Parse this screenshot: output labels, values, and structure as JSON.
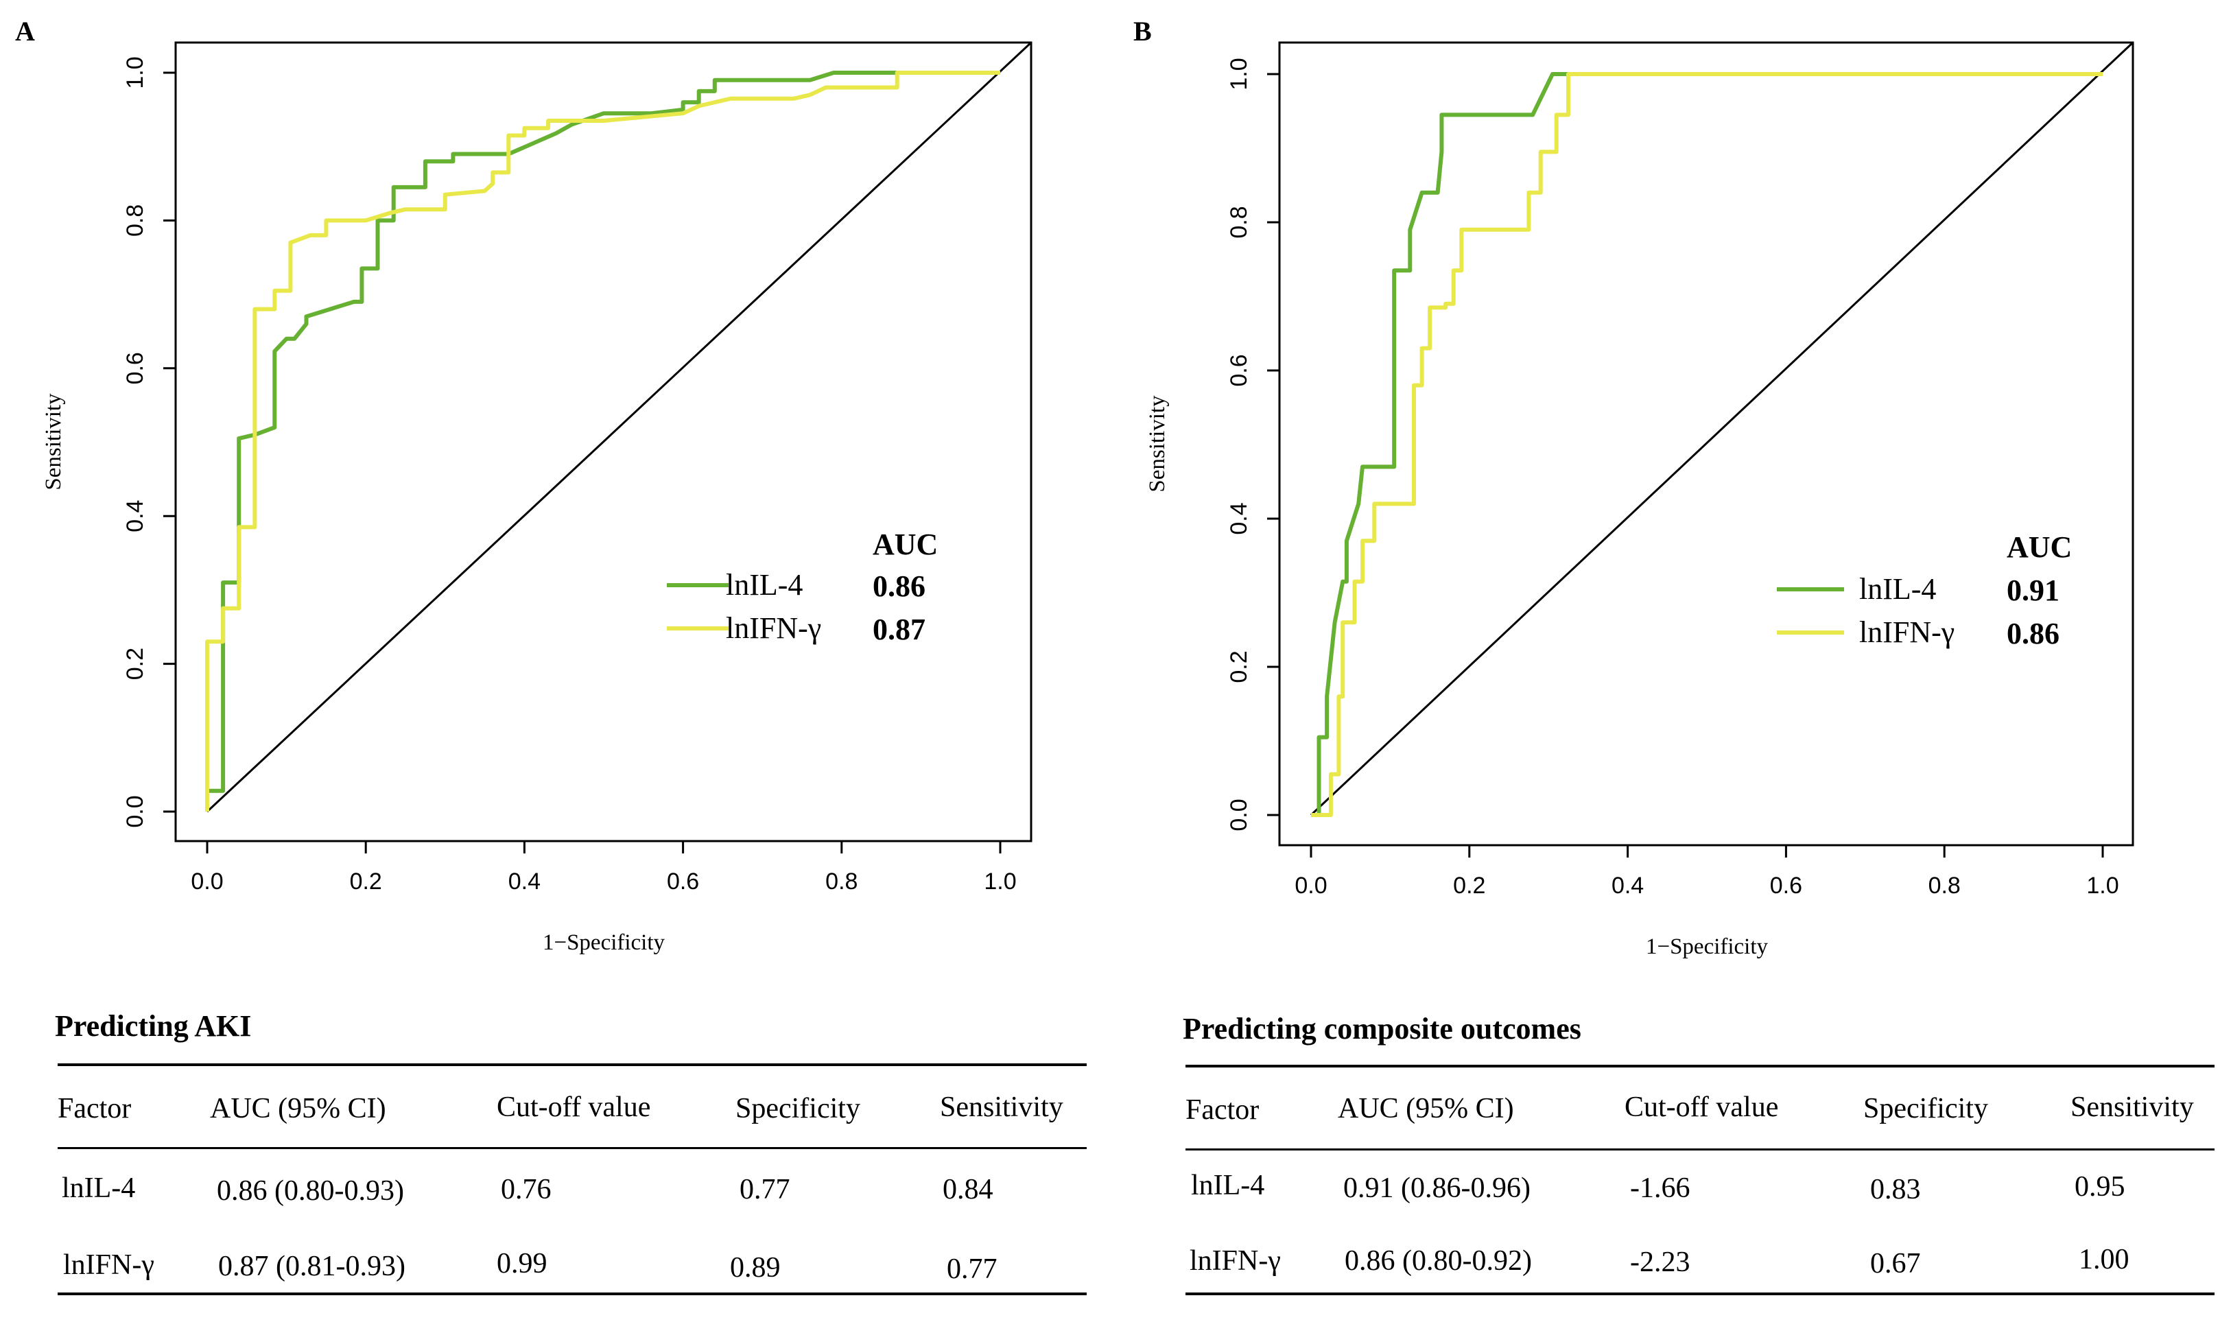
{
  "panels": [
    {
      "letter": "A"
    },
    {
      "letter": "B"
    }
  ],
  "chart_data": [
    {
      "type": "line",
      "panel": "A",
      "xlabel": "1−Specificity",
      "ylabel": "Sensitivity",
      "xlim": [
        0,
        1
      ],
      "ylim": [
        0,
        1
      ],
      "xticks": [
        "0.0",
        "0.2",
        "0.4",
        "0.6",
        "0.8",
        "1.0"
      ],
      "yticks": [
        "0.0",
        "0.2",
        "0.4",
        "0.6",
        "0.8",
        "1.0"
      ],
      "legend_header": "AUC",
      "legend_placement": "bottom-right",
      "reference_line": "diagonal",
      "series": [
        {
          "name": "lnIL-4",
          "auc": "0.86",
          "color": "#66b032",
          "x": [
            0,
            0,
            0.02,
            0.02,
            0.04,
            0.04,
            0.06,
            0.085,
            0.085,
            0.1,
            0.11,
            0.125,
            0.125,
            0.155,
            0.185,
            0.195,
            0.195,
            0.215,
            0.215,
            0.235,
            0.235,
            0.275,
            0.275,
            0.31,
            0.31,
            0.38,
            0.44,
            0.46,
            0.5,
            0.56,
            0.6,
            0.6,
            0.62,
            0.62,
            0.64,
            0.64,
            0.76,
            0.79,
            0.79,
            0.87,
            0.87,
            1.0
          ],
          "y": [
            0,
            0.028,
            0.028,
            0.31,
            0.31,
            0.505,
            0.51,
            0.52,
            0.623,
            0.64,
            0.64,
            0.66,
            0.67,
            0.68,
            0.69,
            0.69,
            0.735,
            0.735,
            0.8,
            0.8,
            0.845,
            0.845,
            0.88,
            0.88,
            0.89,
            0.89,
            0.918,
            0.93,
            0.945,
            0.945,
            0.95,
            0.96,
            0.96,
            0.975,
            0.975,
            0.99,
            0.99,
            1.0,
            1.0,
            1.0,
            1.0,
            1.0
          ]
        },
        {
          "name": "lnIFN-γ",
          "auc": "0.87",
          "color": "#e8e84a",
          "x": [
            0,
            0,
            0.02,
            0.02,
            0.04,
            0.04,
            0.06,
            0.06,
            0.085,
            0.085,
            0.105,
            0.105,
            0.13,
            0.15,
            0.15,
            0.2,
            0.23,
            0.25,
            0.3,
            0.3,
            0.35,
            0.36,
            0.36,
            0.38,
            0.38,
            0.4,
            0.4,
            0.43,
            0.43,
            0.5,
            0.6,
            0.62,
            0.66,
            0.74,
            0.76,
            0.78,
            0.87,
            0.87,
            1.0
          ],
          "y": [
            0,
            0.23,
            0.23,
            0.275,
            0.275,
            0.385,
            0.385,
            0.68,
            0.68,
            0.705,
            0.705,
            0.77,
            0.78,
            0.78,
            0.8,
            0.8,
            0.81,
            0.815,
            0.815,
            0.835,
            0.84,
            0.85,
            0.865,
            0.865,
            0.915,
            0.915,
            0.925,
            0.925,
            0.935,
            0.935,
            0.945,
            0.955,
            0.965,
            0.965,
            0.97,
            0.98,
            0.98,
            1.0,
            1.0
          ]
        }
      ]
    },
    {
      "type": "line",
      "panel": "B",
      "xlabel": "1−Specificity",
      "ylabel": "Sensitivity",
      "xlim": [
        0,
        1
      ],
      "ylim": [
        0,
        1
      ],
      "xticks": [
        "0.0",
        "0.2",
        "0.4",
        "0.6",
        "0.8",
        "1.0"
      ],
      "yticks": [
        "0.0",
        "0.2",
        "0.4",
        "0.6",
        "0.8",
        "1.0"
      ],
      "legend_header": "AUC",
      "legend_placement": "bottom-right",
      "reference_line": "diagonal",
      "series": [
        {
          "name": "lnIL-4",
          "auc": "0.91",
          "color": "#66b032",
          "x": [
            0,
            0.01,
            0.01,
            0.02,
            0.02,
            0.03,
            0.04,
            0.045,
            0.045,
            0.06,
            0.065,
            0.075,
            0.105,
            0.105,
            0.125,
            0.125,
            0.14,
            0.14,
            0.16,
            0.165,
            0.165,
            0.28,
            0.305,
            0.325,
            1.0
          ],
          "y": [
            0,
            0,
            0.105,
            0.105,
            0.16,
            0.26,
            0.315,
            0.315,
            0.37,
            0.42,
            0.47,
            0.47,
            0.47,
            0.735,
            0.735,
            0.79,
            0.84,
            0.84,
            0.84,
            0.895,
            0.945,
            0.945,
            1.0,
            1.0,
            1.0
          ]
        },
        {
          "name": "lnIFN-γ",
          "auc": "0.86",
          "color": "#e8e84a",
          "x": [
            0,
            0.025,
            0.025,
            0.035,
            0.035,
            0.04,
            0.04,
            0.055,
            0.055,
            0.065,
            0.065,
            0.08,
            0.08,
            0.13,
            0.13,
            0.14,
            0.14,
            0.15,
            0.15,
            0.17,
            0.17,
            0.18,
            0.18,
            0.19,
            0.19,
            0.275,
            0.275,
            0.29,
            0.29,
            0.31,
            0.31,
            0.325,
            0.325,
            1.0
          ],
          "y": [
            0,
            0,
            0.055,
            0.055,
            0.16,
            0.16,
            0.26,
            0.26,
            0.315,
            0.315,
            0.37,
            0.37,
            0.42,
            0.42,
            0.58,
            0.58,
            0.63,
            0.63,
            0.685,
            0.685,
            0.69,
            0.69,
            0.735,
            0.735,
            0.79,
            0.79,
            0.84,
            0.84,
            0.895,
            0.895,
            0.945,
            0.945,
            1.0,
            1.0
          ]
        }
      ]
    }
  ],
  "tables": [
    {
      "title": "Predicting AKI",
      "headers": [
        "Factor",
        "AUC (95% CI)",
        "Cut-off value",
        "Specificity",
        "Sensitivity"
      ],
      "rows": [
        [
          "lnIL-4",
          "0.86 (0.80-0.93)",
          "0.76",
          "0.77",
          "0.84"
        ],
        [
          "lnIFN-γ",
          "0.87 (0.81-0.93)",
          "0.99",
          "0.89",
          "0.77"
        ]
      ]
    },
    {
      "title": "Predicting composite outcomes",
      "headers": [
        "Factor",
        "AUC (95% CI)",
        "Cut-off value",
        "Specificity",
        "Sensitivity"
      ],
      "rows": [
        [
          "lnIL-4",
          "0.91 (0.86-0.96)",
          "-1.66",
          "0.83",
          "0.95"
        ],
        [
          "lnIFN-γ",
          "0.86 (0.80-0.92)",
          "-2.23",
          "0.67",
          "1.00"
        ]
      ]
    }
  ]
}
